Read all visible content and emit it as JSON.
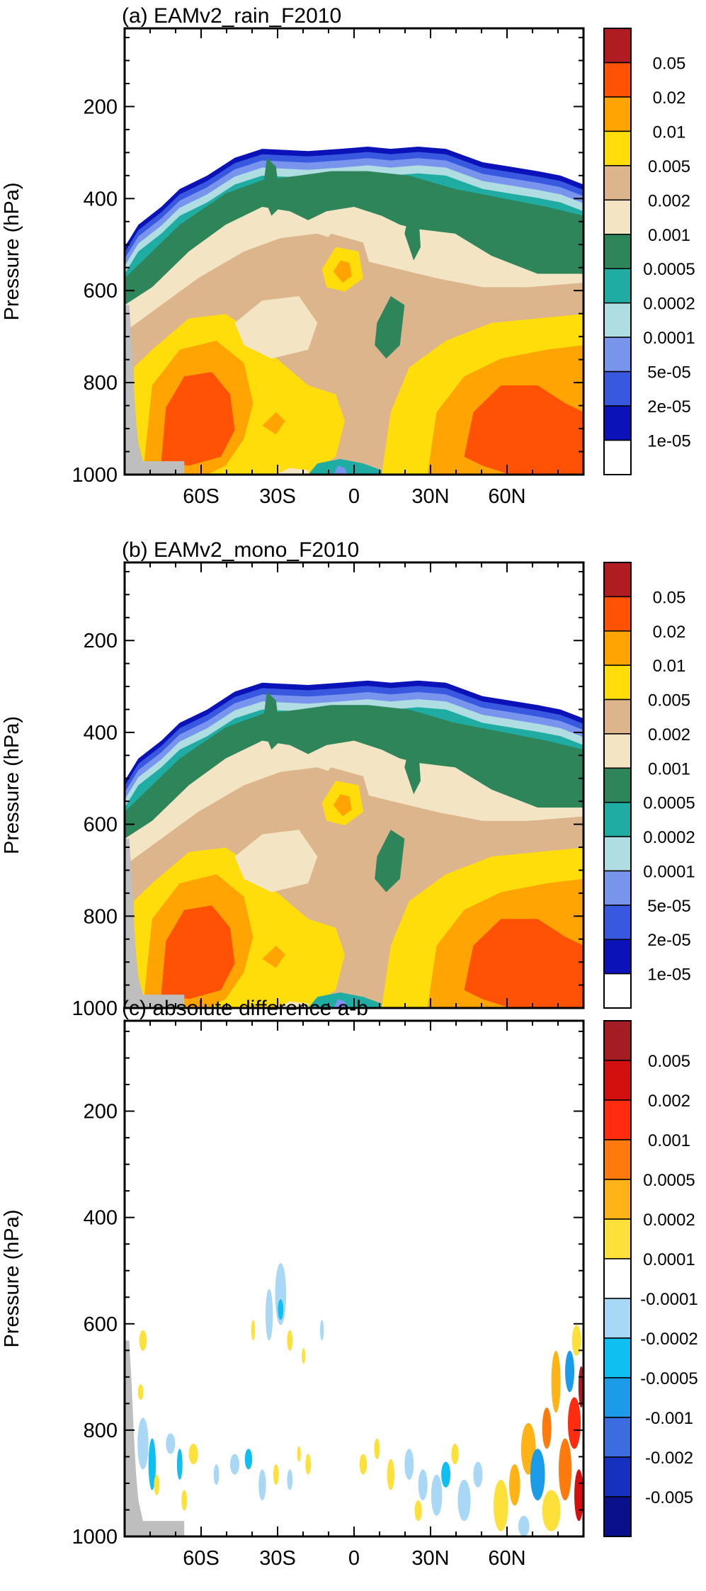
{
  "chart_data": [
    {
      "type": "heatmap",
      "title": "(a) EAMv2_rain_F2010",
      "ylabel": "Pressure (hPa)",
      "xlabel": "",
      "x_ticks": [
        "60S",
        "30S",
        "0",
        "30N",
        "60N"
      ],
      "x_tick_values": [
        -60,
        -30,
        0,
        30,
        60
      ],
      "y_ticks": [
        "200",
        "400",
        "600",
        "800",
        "1000"
      ],
      "y_tick_values": [
        200,
        400,
        600,
        800,
        1000
      ],
      "xlim": [
        -90,
        90
      ],
      "ylim": [
        1000,
        30
      ],
      "colorbar": {
        "labels": [
          "1e-05",
          "2e-05",
          "5e-05",
          "0.0001",
          "0.0002",
          "0.0005",
          "0.001",
          "0.002",
          "0.005",
          "0.01",
          "0.02",
          "0.05"
        ],
        "colors": [
          "#ffffff",
          "#0a12b8",
          "#3858e0",
          "#7894ec",
          "#b0dde2",
          "#1fada3",
          "#2f855a",
          "#f3e5c4",
          "#dcb58d",
          "#ffdd0a",
          "#ffa402",
          "#ff5204",
          "#b11c23"
        ]
      }
    },
    {
      "type": "heatmap",
      "title": "(b) EAMv2_mono_F2010",
      "ylabel": "Pressure (hPa)",
      "xlabel": "",
      "x_ticks": [
        "60S",
        "30S",
        "0",
        "30N",
        "60N"
      ],
      "x_tick_values": [
        -60,
        -30,
        0,
        30,
        60
      ],
      "y_ticks": [
        "200",
        "400",
        "600",
        "800",
        "1000"
      ],
      "y_tick_values": [
        200,
        400,
        600,
        800,
        1000
      ],
      "xlim": [
        -90,
        90
      ],
      "ylim": [
        1000,
        30
      ],
      "colorbar": {
        "labels": [
          "1e-05",
          "2e-05",
          "5e-05",
          "0.0001",
          "0.0002",
          "0.0005",
          "0.001",
          "0.002",
          "0.005",
          "0.01",
          "0.02",
          "0.05"
        ],
        "colors": [
          "#ffffff",
          "#0a12b8",
          "#3858e0",
          "#7894ec",
          "#b0dde2",
          "#1fada3",
          "#2f855a",
          "#f3e5c4",
          "#dcb58d",
          "#ffdd0a",
          "#ffa402",
          "#ff5204",
          "#b11c23"
        ]
      }
    },
    {
      "type": "heatmap",
      "title": "(c) absolute difference a-b",
      "ylabel": "Pressure (hPa)",
      "xlabel": "",
      "x_ticks": [
        "60S",
        "30S",
        "0",
        "30N",
        "60N"
      ],
      "x_tick_values": [
        -60,
        -30,
        0,
        30,
        60
      ],
      "y_ticks": [
        "200",
        "400",
        "600",
        "800",
        "1000"
      ],
      "y_tick_values": [
        200,
        400,
        600,
        800,
        1000
      ],
      "xlim": [
        -90,
        90
      ],
      "ylim": [
        1000,
        30
      ],
      "colorbar": {
        "labels": [
          "-0.005",
          "-0.002",
          "-0.001",
          "-0.0005",
          "-0.0002",
          "-0.0001",
          "0.0001",
          "0.0002",
          "0.0005",
          "0.001",
          "0.002",
          "0.005"
        ],
        "colors": [
          "#0a0f8c",
          "#1630c0",
          "#3c6ce0",
          "#1c9ce8",
          "#10bff2",
          "#a8d8f5",
          "#ffffff",
          "#fde13a",
          "#ffb316",
          "#ff7a0c",
          "#ff2c10",
          "#d40f0f",
          "#a51d24"
        ]
      }
    }
  ]
}
